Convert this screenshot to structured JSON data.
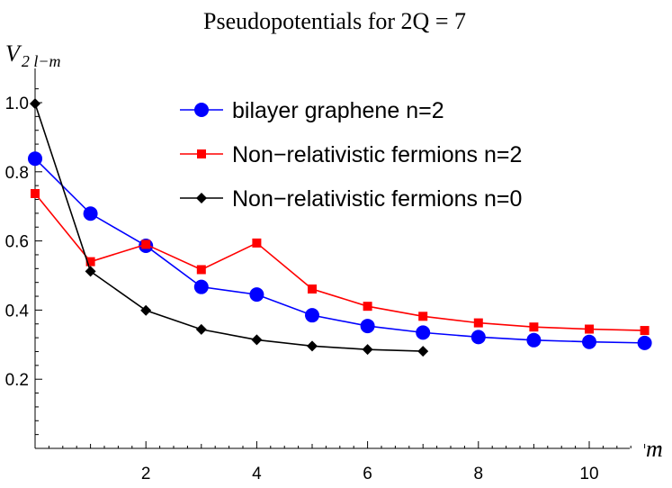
{
  "chart_data": {
    "type": "line",
    "title": "Pseudopotentials for 2Q = 7",
    "xlabel": "m",
    "ylabel_main": "V",
    "ylabel_sub": "2 l−m",
    "xlim": [
      0,
      11.3
    ],
    "ylim": [
      0.0,
      1.05
    ],
    "xticks": [
      2,
      4,
      6,
      8,
      10
    ],
    "yticks": [
      0.2,
      0.4,
      0.6,
      0.8,
      1.0
    ],
    "ytick_labels": [
      "0.2",
      "0.4",
      "0.6",
      "0.8",
      "1.0"
    ],
    "grid": false,
    "legend_position": "top-right",
    "series": [
      {
        "name": "bilayer graphene n=2",
        "color": "#0000ff",
        "marker": "circle",
        "x": [
          0,
          1,
          2,
          3,
          4,
          5,
          6,
          7,
          8,
          9,
          10,
          11
        ],
        "y": [
          0.838,
          0.679,
          0.586,
          0.467,
          0.445,
          0.385,
          0.354,
          0.335,
          0.322,
          0.313,
          0.308,
          0.305
        ]
      },
      {
        "name": "Non−relativistic fermions n=2",
        "color": "#ff0000",
        "marker": "square",
        "x": [
          0,
          1,
          2,
          3,
          4,
          5,
          6,
          7,
          8,
          9,
          10,
          11
        ],
        "y": [
          0.737,
          0.54,
          0.59,
          0.517,
          0.594,
          0.461,
          0.411,
          0.382,
          0.363,
          0.351,
          0.345,
          0.341
        ]
      },
      {
        "name": "Non−relativistic fermions n=0",
        "color": "#000000",
        "marker": "diamond",
        "x": [
          0,
          1,
          2,
          3,
          4,
          5,
          6,
          7
        ],
        "y": [
          0.997,
          0.512,
          0.399,
          0.344,
          0.314,
          0.296,
          0.286,
          0.281
        ]
      }
    ]
  }
}
